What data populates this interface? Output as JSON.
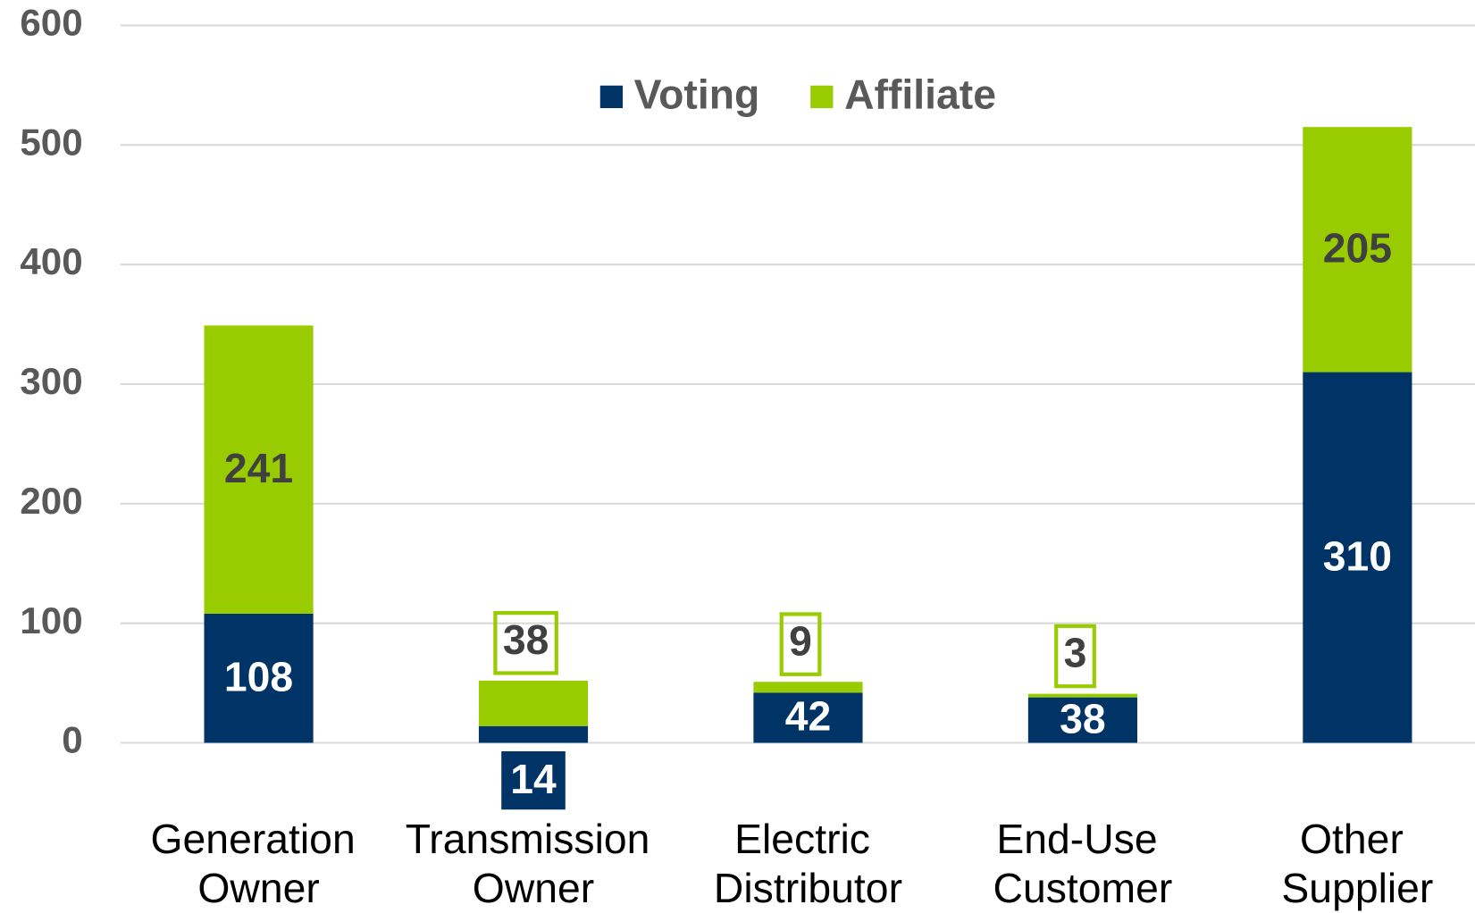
{
  "chart_data": {
    "type": "stacked_bar",
    "categories": [
      "Generation Owner",
      "Transmission Owner",
      "Electric Distributor",
      "End-Use Customer",
      "Other Supplier"
    ],
    "series": [
      {
        "name": "Voting",
        "color": "#003366",
        "values": [
          108,
          14,
          42,
          38,
          310
        ]
      },
      {
        "name": "Affiliate",
        "color": "#99cc00",
        "values": [
          241,
          38,
          9,
          3,
          205
        ]
      }
    ],
    "ylim": [
      0,
      600
    ],
    "yticks": [
      0,
      100,
      200,
      300,
      400,
      500,
      600
    ],
    "grid": true,
    "legend": "top"
  }
}
